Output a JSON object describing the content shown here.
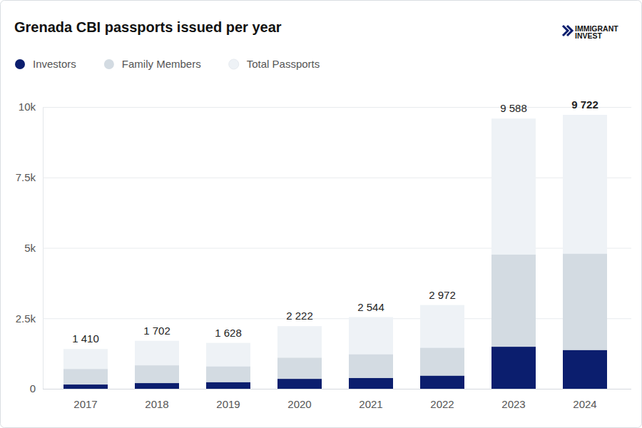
{
  "chart_data": {
    "type": "bar",
    "title": "Grenada CBI passports issued per year",
    "brand": [
      "IMMIGRANT",
      "INVEST"
    ],
    "categories": [
      "2017",
      "2018",
      "2019",
      "2020",
      "2021",
      "2022",
      "2023",
      "2024"
    ],
    "series": [
      {
        "name": "Investors",
        "color": "#0b1e6e",
        "values": [
          150,
          200,
          230,
          350,
          380,
          460,
          1490,
          1370
        ]
      },
      {
        "name": "Family Members",
        "color": "#d3dbe2",
        "values": [
          700,
          830,
          790,
          1100,
          1220,
          1450,
          4760,
          4790
        ]
      },
      {
        "name": "Total Passports",
        "color": "#eef2f6",
        "values": [
          1410,
          1702,
          1628,
          2222,
          2544,
          2972,
          9588,
          9722
        ],
        "value_labels": [
          "1 410",
          "1 702",
          "1 628",
          "2 222",
          "2 544",
          "2 972",
          "9 588",
          "9 722"
        ],
        "data_labels": true
      }
    ],
    "stacked": false,
    "ylim": [
      0,
      10000
    ],
    "yticks": [
      0,
      {
        "value": 2500,
        "label": "2.5k"
      },
      {
        "value": 5000,
        "label": "5k"
      },
      {
        "value": 7500,
        "label": "7.5k"
      },
      {
        "value": 10000,
        "label": "10k"
      }
    ],
    "grid": true,
    "legend": "top-left"
  }
}
